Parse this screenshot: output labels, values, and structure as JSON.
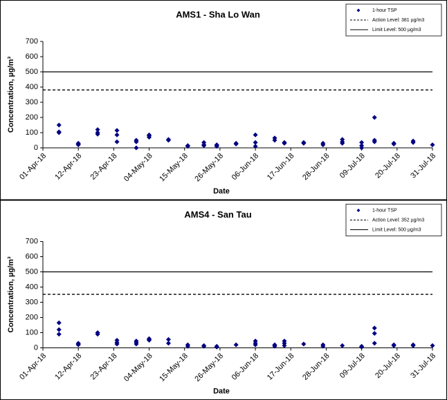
{
  "chart_data": [
    {
      "type": "scatter",
      "title": "AMS1 - Sha Lo Wan",
      "x_label": "Date",
      "y_label": "Concentration, µg/m³",
      "xlim": [
        "2018-04-01",
        "2018-07-31"
      ],
      "xticks": [
        {
          "value": "2018-04-01",
          "label": "01-Apr-18"
        },
        {
          "value": "2018-04-12",
          "label": "12-Apr-18"
        },
        {
          "value": "2018-04-23",
          "label": "23-Apr-18"
        },
        {
          "value": "2018-05-04",
          "label": "04-May-18"
        },
        {
          "value": "2018-05-15",
          "label": "15-May-18"
        },
        {
          "value": "2018-05-26",
          "label": "26-May-18"
        },
        {
          "value": "2018-06-06",
          "label": "06-Jun-18"
        },
        {
          "value": "2018-06-17",
          "label": "17-Jun-18"
        },
        {
          "value": "2018-06-28",
          "label": "28-Jun-18"
        },
        {
          "value": "2018-07-09",
          "label": "09-Jul-18"
        },
        {
          "value": "2018-07-20",
          "label": "20-Jul-18"
        },
        {
          "value": "2018-07-31",
          "label": "31-Jul-18"
        }
      ],
      "ylim": [
        0,
        700
      ],
      "yticks": [
        0,
        100,
        200,
        300,
        400,
        500,
        600,
        700
      ],
      "legend": "top-right",
      "series": [
        {
          "name": "1-hour TSP",
          "color": "#000080",
          "x": [
            "2018-04-06",
            "2018-04-06",
            "2018-04-06",
            "2018-04-12",
            "2018-04-12",
            "2018-04-12",
            "2018-04-18",
            "2018-04-18",
            "2018-04-18",
            "2018-04-24",
            "2018-04-24",
            "2018-04-24",
            "2018-04-30",
            "2018-04-30",
            "2018-04-30",
            "2018-05-04",
            "2018-05-04",
            "2018-05-04",
            "2018-05-10",
            "2018-05-10",
            "2018-05-16",
            "2018-05-16",
            "2018-05-21",
            "2018-05-21",
            "2018-05-21",
            "2018-05-25",
            "2018-05-25",
            "2018-05-25",
            "2018-05-31",
            "2018-05-31",
            "2018-06-06",
            "2018-06-06",
            "2018-06-06",
            "2018-06-12",
            "2018-06-12",
            "2018-06-15",
            "2018-06-15",
            "2018-06-21",
            "2018-06-21",
            "2018-06-27",
            "2018-06-27",
            "2018-07-03",
            "2018-07-03",
            "2018-07-03",
            "2018-07-09",
            "2018-07-09",
            "2018-07-09",
            "2018-07-13",
            "2018-07-13",
            "2018-07-13",
            "2018-07-19",
            "2018-07-19",
            "2018-07-25",
            "2018-07-25",
            "2018-07-31"
          ],
          "values": [
            150,
            100,
            105,
            25,
            20,
            30,
            120,
            100,
            90,
            115,
            85,
            40,
            50,
            40,
            0,
            80,
            70,
            85,
            55,
            50,
            15,
            10,
            35,
            20,
            15,
            20,
            10,
            15,
            30,
            25,
            85,
            35,
            10,
            65,
            50,
            35,
            30,
            35,
            30,
            30,
            20,
            55,
            40,
            30,
            35,
            15,
            0,
            200,
            50,
            40,
            30,
            25,
            45,
            35,
            20
          ]
        }
      ],
      "lines": [
        {
          "name": "Action Level: 381 µg/m3",
          "value": 381,
          "style": "dashed",
          "color": "#000000"
        },
        {
          "name": "Limit Level: 500 µg/m3",
          "value": 500,
          "style": "solid",
          "color": "#000000"
        }
      ]
    },
    {
      "type": "scatter",
      "title": "AMS4 - San Tau",
      "x_label": "Date",
      "y_label": "Concentration, µg/m³",
      "xlim": [
        "2018-04-01",
        "2018-07-31"
      ],
      "xticks": [
        {
          "value": "2018-04-01",
          "label": "01-Apr-18"
        },
        {
          "value": "2018-04-12",
          "label": "12-Apr-18"
        },
        {
          "value": "2018-04-23",
          "label": "23-Apr-18"
        },
        {
          "value": "2018-05-04",
          "label": "04-May-18"
        },
        {
          "value": "2018-05-15",
          "label": "15-May-18"
        },
        {
          "value": "2018-05-26",
          "label": "26-May-18"
        },
        {
          "value": "2018-06-06",
          "label": "06-Jun-18"
        },
        {
          "value": "2018-06-17",
          "label": "17-Jun-18"
        },
        {
          "value": "2018-06-28",
          "label": "28-Jun-18"
        },
        {
          "value": "2018-07-09",
          "label": "09-Jul-18"
        },
        {
          "value": "2018-07-20",
          "label": "20-Jul-18"
        },
        {
          "value": "2018-07-31",
          "label": "31-Jul-18"
        }
      ],
      "ylim": [
        0,
        700
      ],
      "yticks": [
        0,
        100,
        200,
        300,
        400,
        500,
        600,
        700
      ],
      "legend": "top-right",
      "series": [
        {
          "name": "1-hour TSP",
          "color": "#000080",
          "x": [
            "2018-04-06",
            "2018-04-06",
            "2018-04-06",
            "2018-04-12",
            "2018-04-12",
            "2018-04-12",
            "2018-04-18",
            "2018-04-18",
            "2018-04-24",
            "2018-04-24",
            "2018-04-24",
            "2018-04-30",
            "2018-04-30",
            "2018-04-30",
            "2018-05-04",
            "2018-05-04",
            "2018-05-04",
            "2018-05-10",
            "2018-05-10",
            "2018-05-16",
            "2018-05-16",
            "2018-05-21",
            "2018-05-21",
            "2018-05-25",
            "2018-05-25",
            "2018-05-31",
            "2018-06-06",
            "2018-06-06",
            "2018-06-06",
            "2018-06-12",
            "2018-06-12",
            "2018-06-12",
            "2018-06-15",
            "2018-06-15",
            "2018-06-15",
            "2018-06-21",
            "2018-06-27",
            "2018-06-27",
            "2018-07-03",
            "2018-07-09",
            "2018-07-09",
            "2018-07-13",
            "2018-07-13",
            "2018-07-13",
            "2018-07-19",
            "2018-07-19",
            "2018-07-25",
            "2018-07-25",
            "2018-07-31"
          ],
          "values": [
            165,
            120,
            90,
            30,
            25,
            20,
            100,
            90,
            50,
            35,
            25,
            45,
            35,
            25,
            60,
            55,
            50,
            55,
            30,
            20,
            10,
            15,
            10,
            10,
            5,
            20,
            45,
            30,
            20,
            20,
            15,
            10,
            45,
            30,
            15,
            25,
            20,
            10,
            15,
            10,
            5,
            130,
            95,
            30,
            20,
            15,
            20,
            15,
            15
          ]
        }
      ],
      "lines": [
        {
          "name": "Action Level: 352 µg/m3",
          "value": 352,
          "style": "dashed",
          "color": "#000000"
        },
        {
          "name": "Limit Level: 500 µg/m3",
          "value": 500,
          "style": "solid",
          "color": "#000000"
        }
      ]
    }
  ]
}
